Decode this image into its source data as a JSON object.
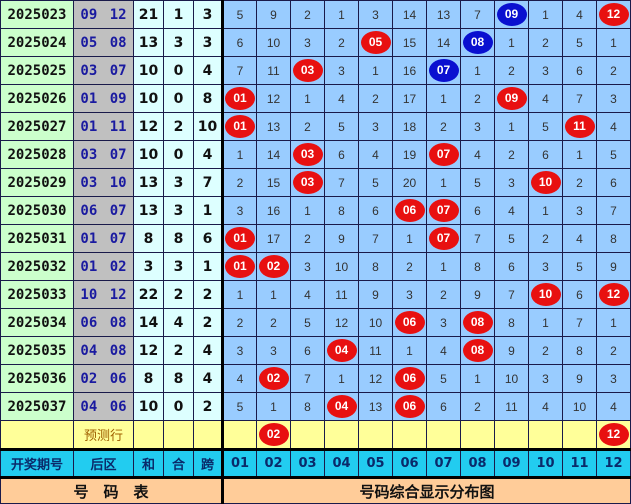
{
  "colors": {
    "red": "#e81010",
    "blue": "#0a10d0",
    "grid": "#99ccff",
    "header": "#22ccf0",
    "footer": "#ffcc99",
    "prediction": "#ffff99"
  },
  "rows": [
    {
      "period": "2025023",
      "back": "09 12",
      "sum": "21",
      "he": "1",
      "span": "3",
      "cells": [
        "5",
        "9",
        "2",
        "1",
        "3",
        "14",
        "13",
        "7",
        {
          "ball": "09",
          "color": "blue"
        },
        "1",
        "4",
        {
          "ball": "12",
          "color": "red"
        }
      ]
    },
    {
      "period": "2025024",
      "back": "05 08",
      "sum": "13",
      "he": "3",
      "span": "3",
      "cells": [
        "6",
        "10",
        "3",
        "2",
        {
          "ball": "05",
          "color": "red"
        },
        "15",
        "14",
        {
          "ball": "08",
          "color": "blue"
        },
        "1",
        "2",
        "5",
        "1"
      ]
    },
    {
      "period": "2025025",
      "back": "03 07",
      "sum": "10",
      "he": "0",
      "span": "4",
      "cells": [
        "7",
        "11",
        {
          "ball": "03",
          "color": "red"
        },
        "3",
        "1",
        "16",
        {
          "ball": "07",
          "color": "blue"
        },
        "1",
        "2",
        "3",
        "6",
        "2"
      ]
    },
    {
      "period": "2025026",
      "back": "01 09",
      "sum": "10",
      "he": "0",
      "span": "8",
      "cells": [
        {
          "ball": "01",
          "color": "red"
        },
        "12",
        "1",
        "4",
        "2",
        "17",
        "1",
        "2",
        {
          "ball": "09",
          "color": "red"
        },
        "4",
        "7",
        "3"
      ]
    },
    {
      "period": "2025027",
      "back": "01 11",
      "sum": "12",
      "he": "2",
      "span": "10",
      "cells": [
        {
          "ball": "01",
          "color": "red"
        },
        "13",
        "2",
        "5",
        "3",
        "18",
        "2",
        "3",
        "1",
        "5",
        {
          "ball": "11",
          "color": "red"
        },
        "4"
      ]
    },
    {
      "period": "2025028",
      "back": "03 07",
      "sum": "10",
      "he": "0",
      "span": "4",
      "cells": [
        "1",
        "14",
        {
          "ball": "03",
          "color": "red"
        },
        "6",
        "4",
        "19",
        {
          "ball": "07",
          "color": "red"
        },
        "4",
        "2",
        "6",
        "1",
        "5"
      ]
    },
    {
      "period": "2025029",
      "back": "03 10",
      "sum": "13",
      "he": "3",
      "span": "7",
      "cells": [
        "2",
        "15",
        {
          "ball": "03",
          "color": "red"
        },
        "7",
        "5",
        "20",
        "1",
        "5",
        "3",
        {
          "ball": "10",
          "color": "red"
        },
        "2",
        "6"
      ]
    },
    {
      "period": "2025030",
      "back": "06 07",
      "sum": "13",
      "he": "3",
      "span": "1",
      "cells": [
        "3",
        "16",
        "1",
        "8",
        "6",
        {
          "ball": "06",
          "color": "red"
        },
        {
          "ball": "07",
          "color": "red"
        },
        "6",
        "4",
        "1",
        "3",
        "7"
      ]
    },
    {
      "period": "2025031",
      "back": "01 07",
      "sum": "8",
      "he": "8",
      "span": "6",
      "cells": [
        {
          "ball": "01",
          "color": "red"
        },
        "17",
        "2",
        "9",
        "7",
        "1",
        {
          "ball": "07",
          "color": "red"
        },
        "7",
        "5",
        "2",
        "4",
        "8"
      ]
    },
    {
      "period": "2025032",
      "back": "01 02",
      "sum": "3",
      "he": "3",
      "span": "1",
      "cells": [
        {
          "ball": "01",
          "color": "red"
        },
        {
          "ball": "02",
          "color": "red"
        },
        "3",
        "10",
        "8",
        "2",
        "1",
        "8",
        "6",
        "3",
        "5",
        "9"
      ]
    },
    {
      "period": "2025033",
      "back": "10 12",
      "sum": "22",
      "he": "2",
      "span": "2",
      "cells": [
        "1",
        "1",
        "4",
        "11",
        "9",
        "3",
        "2",
        "9",
        "7",
        {
          "ball": "10",
          "color": "red"
        },
        "6",
        {
          "ball": "12",
          "color": "red"
        }
      ]
    },
    {
      "period": "2025034",
      "back": "06 08",
      "sum": "14",
      "he": "4",
      "span": "2",
      "cells": [
        "2",
        "2",
        "5",
        "12",
        "10",
        {
          "ball": "06",
          "color": "red"
        },
        "3",
        {
          "ball": "08",
          "color": "red"
        },
        "8",
        "1",
        "7",
        "1"
      ]
    },
    {
      "period": "2025035",
      "back": "04 08",
      "sum": "12",
      "he": "2",
      "span": "4",
      "cells": [
        "3",
        "3",
        "6",
        {
          "ball": "04",
          "color": "red"
        },
        "11",
        "1",
        "4",
        {
          "ball": "08",
          "color": "red"
        },
        "9",
        "2",
        "8",
        "2"
      ]
    },
    {
      "period": "2025036",
      "back": "02 06",
      "sum": "8",
      "he": "8",
      "span": "4",
      "cells": [
        "4",
        {
          "ball": "02",
          "color": "red"
        },
        "7",
        "1",
        "12",
        {
          "ball": "06",
          "color": "red"
        },
        "5",
        "1",
        "10",
        "3",
        "9",
        "3"
      ]
    },
    {
      "period": "2025037",
      "back": "04 06",
      "sum": "10",
      "he": "0",
      "span": "2",
      "cells": [
        "5",
        "1",
        "8",
        {
          "ball": "04",
          "color": "red"
        },
        "13",
        {
          "ball": "06",
          "color": "red"
        },
        "6",
        "2",
        "11",
        "4",
        "10",
        "4"
      ]
    }
  ],
  "prediction": {
    "label": "预测行",
    "cells": [
      "",
      {
        "ball": "02",
        "color": "red"
      },
      "",
      "",
      "",
      "",
      "",
      "",
      "",
      "",
      "",
      {
        "ball": "12",
        "color": "red"
      }
    ]
  },
  "header": {
    "period": "开奖期号",
    "back": "后区",
    "sum": "和",
    "he": "合",
    "span": "跨",
    "numbers": [
      "01",
      "02",
      "03",
      "04",
      "05",
      "06",
      "07",
      "08",
      "09",
      "10",
      "11",
      "12"
    ]
  },
  "footer": {
    "left": "号　码　表",
    "right": "号码综合显示分布图"
  }
}
